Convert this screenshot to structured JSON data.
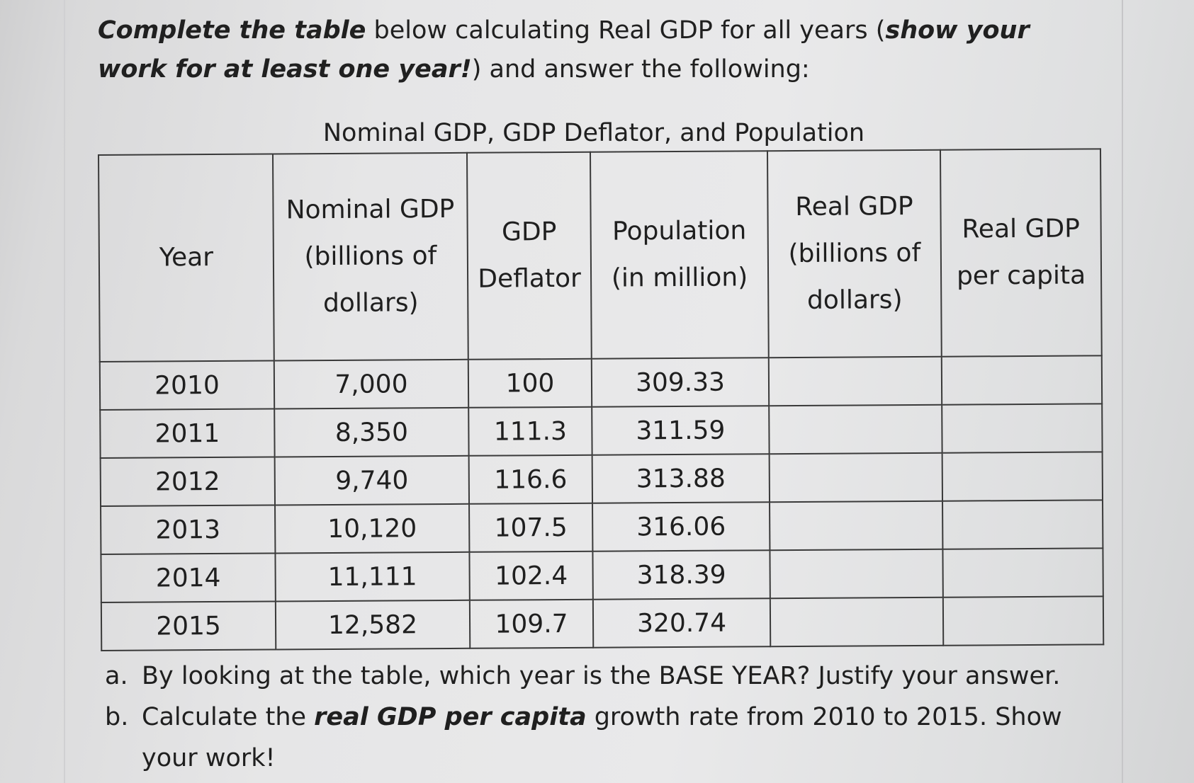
{
  "instructions": {
    "bold1": "Complete the table",
    "text1": " below calculating Real GDP for all years (",
    "bold2": "show your work for at least one year!",
    "text2": ") and answer the following:"
  },
  "table": {
    "title": "Nominal GDP, GDP Deflator, and Population",
    "headers": [
      "Year",
      "Nominal GDP (billions of dollars)",
      "GDP Deflator",
      "Population (in million)",
      "Real GDP (billions of dollars)",
      "Real GDP per capita"
    ],
    "rows": [
      {
        "year": "2010",
        "nominal": "7,000",
        "deflator": "100",
        "population": "309.33",
        "real": "",
        "percap": ""
      },
      {
        "year": "2011",
        "nominal": "8,350",
        "deflator": "111.3",
        "population": "311.59",
        "real": "",
        "percap": ""
      },
      {
        "year": "2012",
        "nominal": "9,740",
        "deflator": "116.6",
        "population": "313.88",
        "real": "",
        "percap": ""
      },
      {
        "year": "2013",
        "nominal": "10,120",
        "deflator": "107.5",
        "population": "316.06",
        "real": "",
        "percap": ""
      },
      {
        "year": "2014",
        "nominal": "11,111",
        "deflator": "102.4",
        "population": "318.39",
        "real": "",
        "percap": ""
      },
      {
        "year": "2015",
        "nominal": "12,582",
        "deflator": "109.7",
        "population": "320.74",
        "real": "",
        "percap": ""
      }
    ]
  },
  "questions": {
    "a": {
      "letter": "a.",
      "text": "By looking at the table, which year is the BASE YEAR? Justify your answer."
    },
    "b": {
      "letter": "b.",
      "text_before": "Calculate the ",
      "bold": "real GDP per capita",
      "text_after": " growth rate from 2010 to 2015. Show your work!"
    }
  }
}
